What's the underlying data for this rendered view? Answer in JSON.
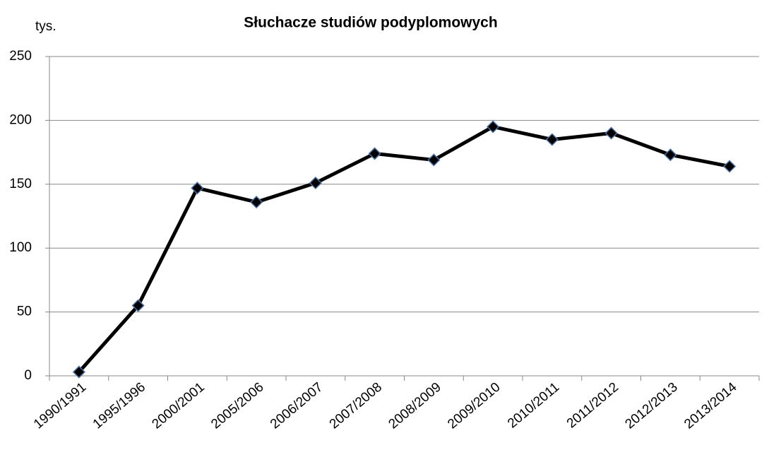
{
  "chart_data": {
    "type": "line",
    "title": "Słuchacze studiów podyplomowych",
    "y_label": "tys.",
    "categories": [
      "1990/1991",
      "1995/1996",
      "2000/2001",
      "2005/2006",
      "2006/2007",
      "2007/2008",
      "2008/2009",
      "2009/2010",
      "2010/2011",
      "2011/2012",
      "2012/2013",
      "2013/2014"
    ],
    "series": [
      {
        "name": "Słuchacze",
        "color": "#000000",
        "marker_edge": "#4a6fa5",
        "values": [
          3,
          55,
          147,
          136,
          151,
          174,
          169,
          195,
          185,
          190,
          173,
          164
        ]
      }
    ],
    "ylim": [
      0,
      250
    ],
    "yticks": [
      0,
      50,
      100,
      150,
      200,
      250
    ],
    "grid": true
  }
}
